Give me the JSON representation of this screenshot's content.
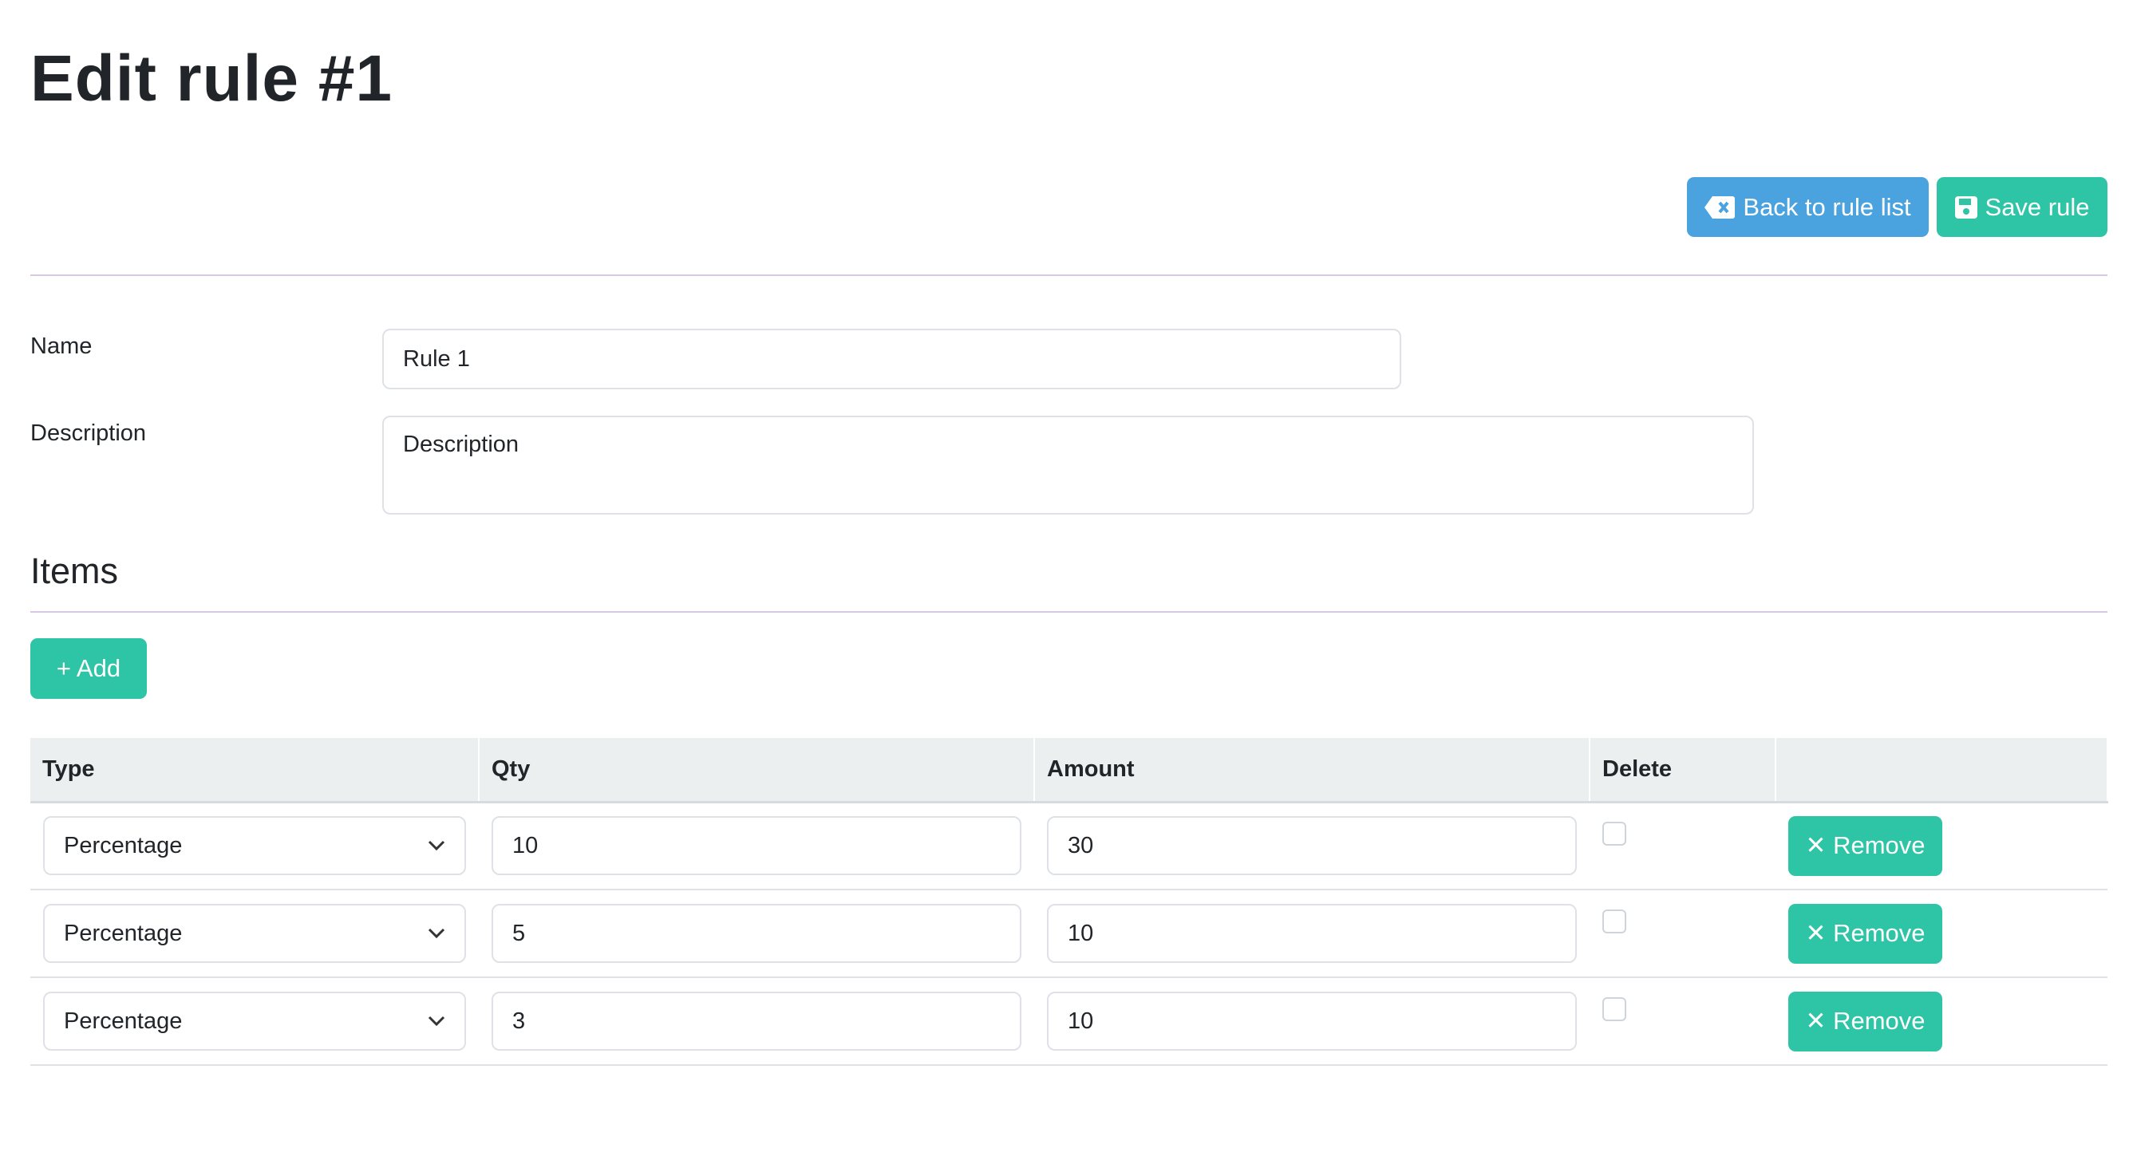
{
  "page": {
    "title": "Edit rule #1"
  },
  "toolbar": {
    "back_label": "Back to rule list",
    "back_icon": "backspace-icon",
    "save_label": "Save rule",
    "save_icon": "floppy-disk-icon"
  },
  "form": {
    "name_label": "Name",
    "name_value": "Rule 1",
    "description_label": "Description",
    "description_placeholder": "Description"
  },
  "items": {
    "heading": "Items",
    "add_label": "+ Add",
    "columns": [
      "Type",
      "Qty",
      "Amount",
      "Delete",
      ""
    ],
    "rows": [
      {
        "type": "Percentage",
        "qty": "10",
        "amount": "30",
        "delete": false,
        "remove_label": "✕ Remove"
      },
      {
        "type": "Percentage",
        "qty": "5",
        "amount": "10",
        "delete": false,
        "remove_label": "✕ Remove"
      },
      {
        "type": "Percentage",
        "qty": "3",
        "amount": "10",
        "delete": false,
        "remove_label": "✕ Remove"
      }
    ]
  },
  "colors": {
    "primary": "#4aa3df",
    "success": "#2ec4a6",
    "header_bg": "#ebeff0"
  }
}
